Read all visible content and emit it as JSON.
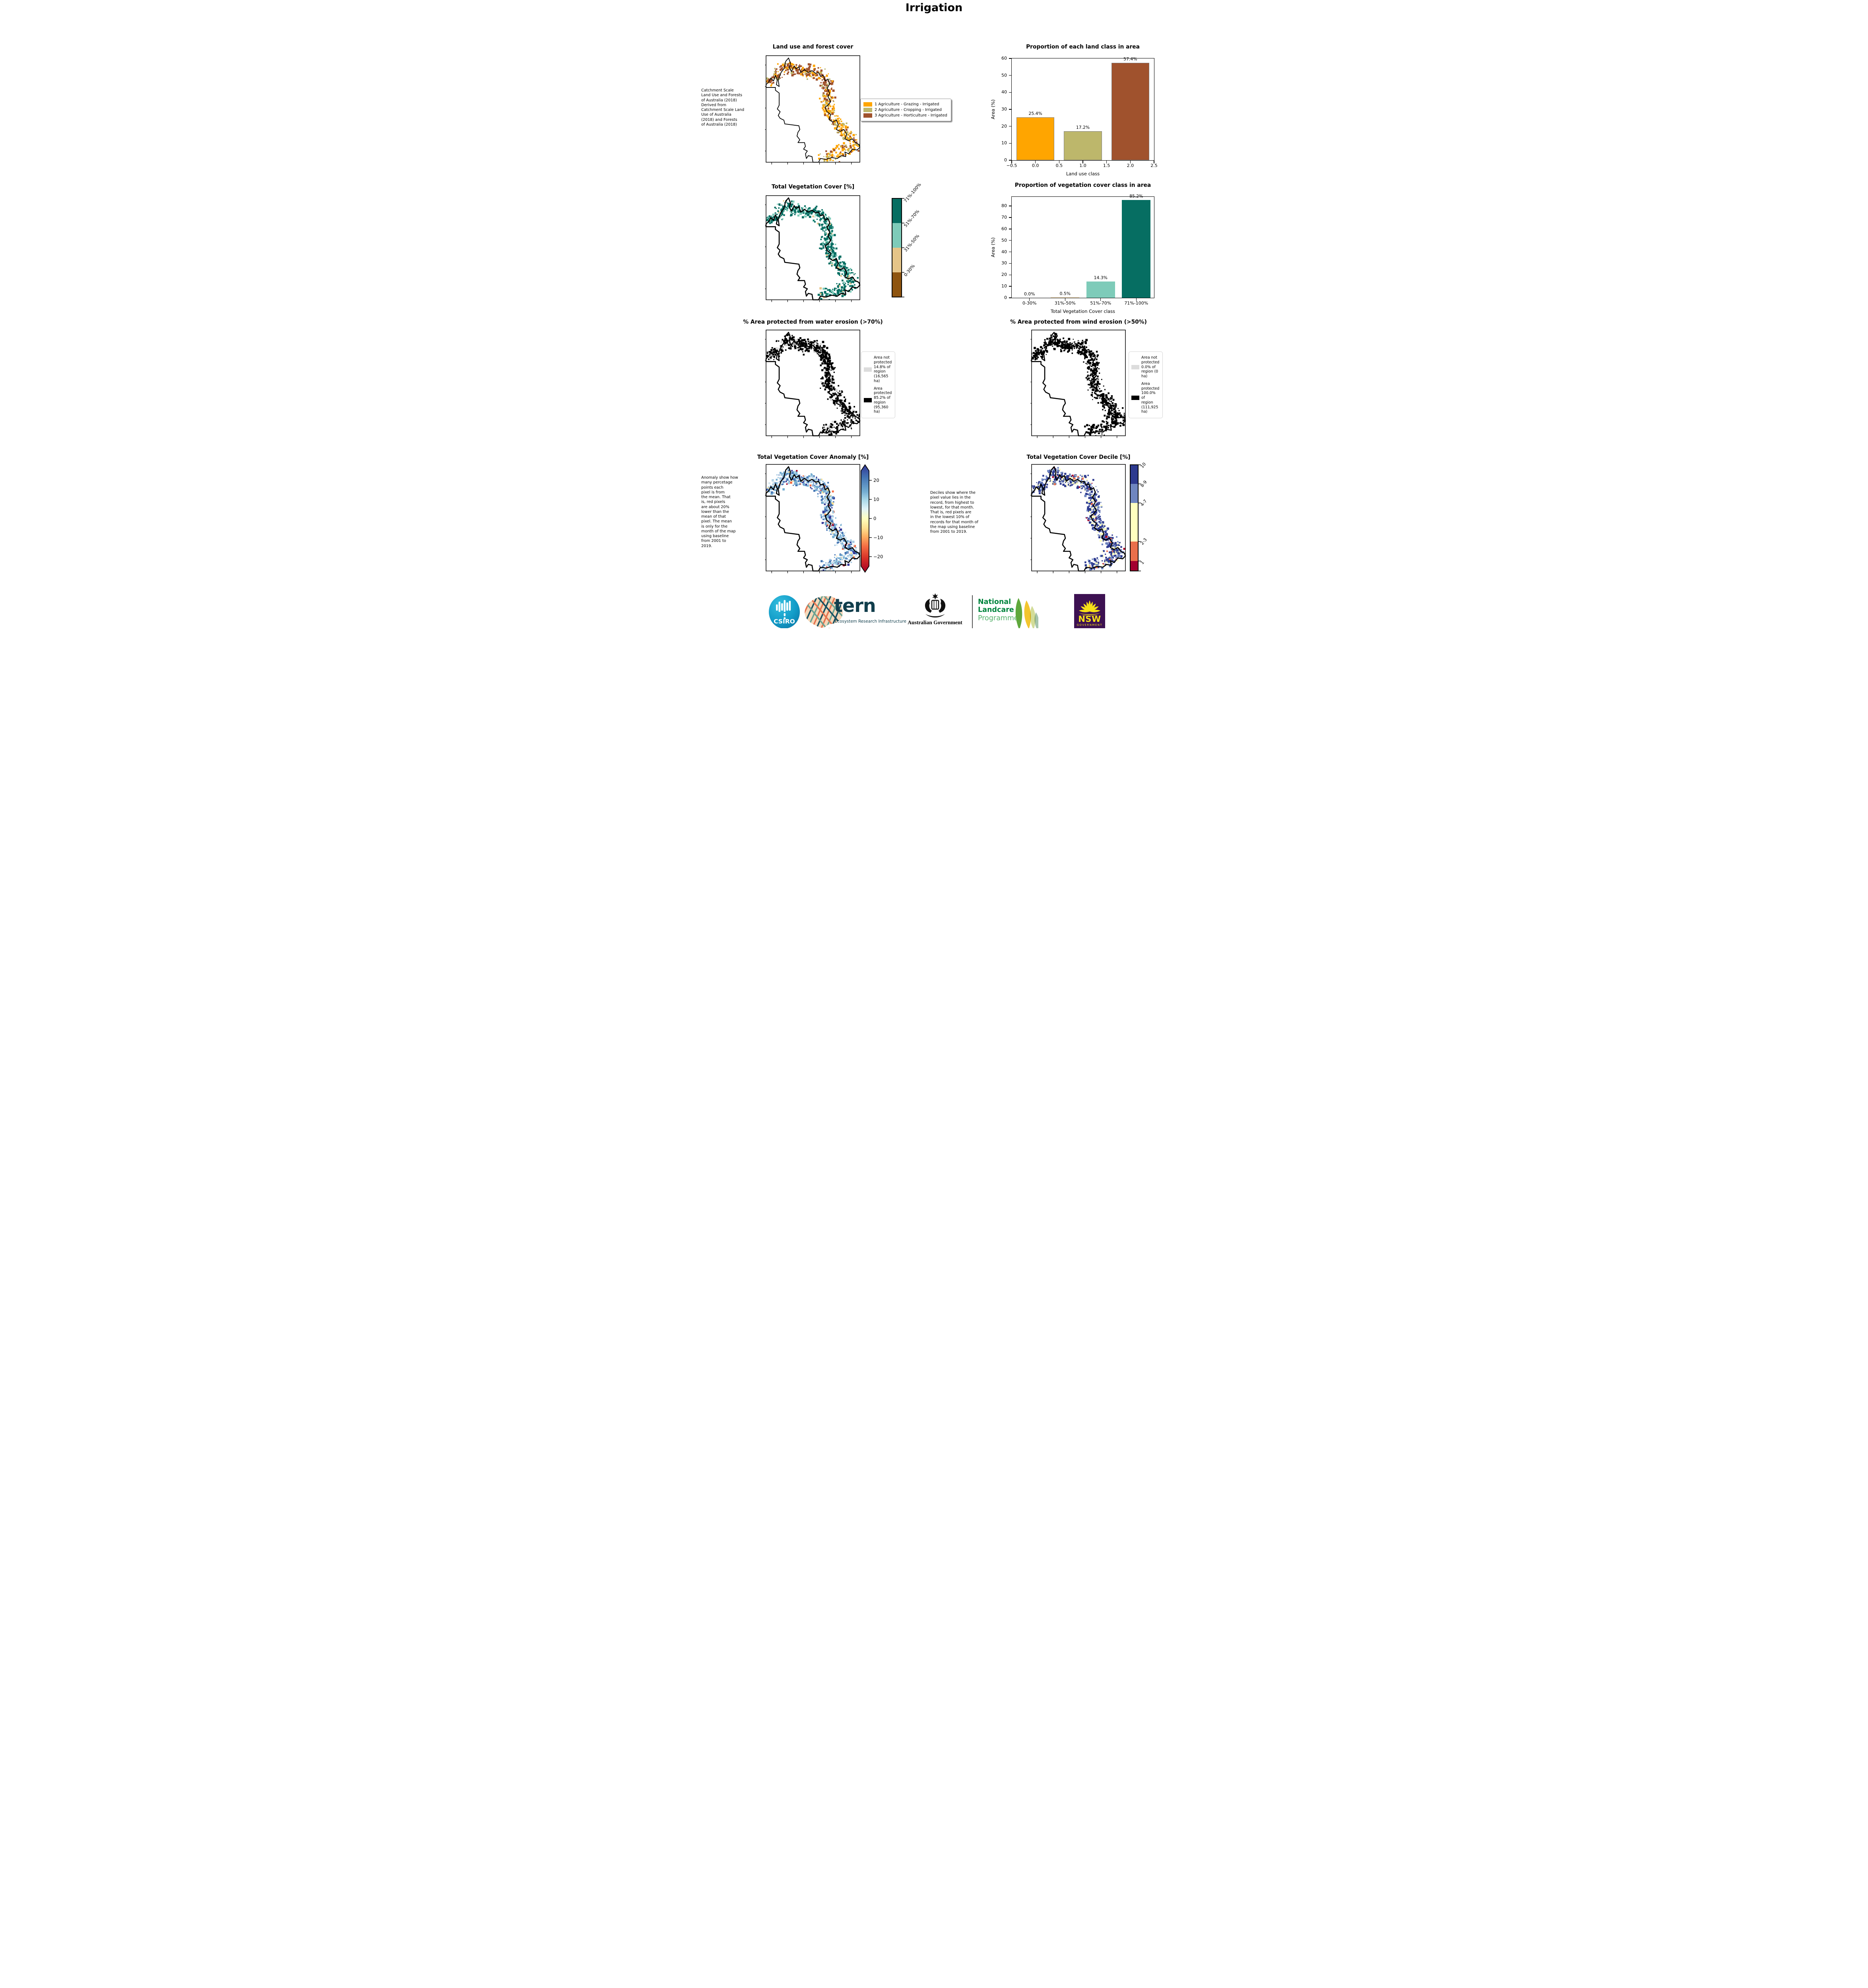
{
  "title": "Irrigation",
  "notes": {
    "landuse_source": " Catchment Scale\nLand Use and Forests\nof Australia (2018)\nDerived from\nCatchment Scale Land\nUse of Australia\n(2018) and Forests\nof Australia (2018)",
    "anomaly": "Anomaly show how\nmany percetage\npoints each\npixel is from\nthe mean. That\nis, red pixels\nare about 20%\nlower than the\nmean of that\npixel. The mean\nis only for the\nmonth of the map\nusing baseline\nfrom 2001 to\n2019.",
    "decile": "Deciles show where the\npixel value lies in the\nrecord, from highest to\nlowest, for that month.\nThat is, red pixels are\nin the lowest 10% of\nrecords for that month of\nthe map using baseline\nfrom 2001 to 2019."
  },
  "panels": {
    "landuse": {
      "title": "Land use and forest cover",
      "legend": [
        {
          "label": "1 Agriculture - Grazing - Irrigated",
          "color": "#FFA500"
        },
        {
          "label": "2 Agriculture - Cropping - Irrigated",
          "color": "#BDB76B"
        },
        {
          "label": "3 Agriculture - Horticulture - Irrigated",
          "color": "#A0522D"
        }
      ]
    },
    "vegcover": {
      "title": "Total Vegetation Cover [%]",
      "colorbar": [
        {
          "label": "71%-100%",
          "color": "#066E62"
        },
        {
          "label": "51%-70%",
          "color": "#7ECBB9"
        },
        {
          "label": "31%-50%",
          "color": "#E5C488"
        },
        {
          "label": "0-30%",
          "color": "#8E5410"
        }
      ]
    },
    "water": {
      "title": "% Area protected from water erosion (>70%)",
      "legend": [
        {
          "label": "Area not\nprotected\n14.8% of\nregion\n(16,565\nha)",
          "color": "#DCDCDC"
        },
        {
          "label": "Area\nprotected\n85.2% of\nregion\n(95,360\nha)",
          "color": "#000000"
        }
      ]
    },
    "wind": {
      "title": "% Area protected from wind erosion (>50%)",
      "legend": [
        {
          "label": "Area not\nprotected\n0.0% of\nregion (0\nha)",
          "color": "#DCDCDC"
        },
        {
          "label": "Area\nprotected\n100.0% of\nregion\n(111,925\nha)",
          "color": "#000000"
        }
      ]
    },
    "anomaly": {
      "title": "Total Vegetation Cover Anomaly [%]",
      "colorbar_ticks": [
        "20",
        "10",
        "0",
        "−10",
        "−20"
      ]
    },
    "decile": {
      "title": "Total Vegetation Cover Decile [%]",
      "colorbar": [
        {
          "label": "10",
          "color": "#2D3A8F"
        },
        {
          "label": "8-9",
          "color": "#6F86C0"
        },
        {
          "label": "4-7",
          "color": "#FFFFBF"
        },
        {
          "label": "2-3",
          "color": "#E96F4B"
        },
        {
          "label": "1",
          "color": "#A30030"
        }
      ]
    }
  },
  "chart_data": [
    {
      "type": "bar",
      "title": "Proportion of each land class in area",
      "xlabel": "Land use class",
      "ylabel": "Area (%)",
      "x": [
        0,
        1,
        2
      ],
      "values": [
        25.4,
        17.2,
        57.4
      ],
      "bar_labels": [
        "25.4%",
        "17.2%",
        "57.4%"
      ],
      "bar_colors": [
        "#FFA500",
        "#BDB76B",
        "#A0522D"
      ],
      "bar_edge": "#808080",
      "bar_width": 0.8,
      "xlim": [
        -0.5,
        2.5
      ],
      "ylim": [
        0,
        60
      ],
      "xticks": [
        {
          "v": -0.5,
          "label": "−0.5"
        },
        {
          "v": 0,
          "label": "0.0"
        },
        {
          "v": 0.5,
          "label": "0.5"
        },
        {
          "v": 1,
          "label": "1.0"
        },
        {
          "v": 1.5,
          "label": "1.5"
        },
        {
          "v": 2,
          "label": "2.0"
        },
        {
          "v": 2.5,
          "label": "2.5"
        }
      ],
      "yticks": [
        0,
        10,
        20,
        30,
        40,
        50,
        60
      ],
      "grid": false,
      "legend_position": "none"
    },
    {
      "type": "bar",
      "title": "Proportion of vegetation cover class in area",
      "xlabel": "Total Vegetation Cover class",
      "ylabel": "Area (%)",
      "categories": [
        "0-30%",
        "31%-50%",
        "51%-70%",
        "71%-100%"
      ],
      "x": [
        0,
        1,
        2,
        3
      ],
      "values": [
        0.0,
        0.5,
        14.3,
        85.2
      ],
      "bar_labels": [
        "0.0%",
        "0.5%",
        "14.3%",
        "85.2%"
      ],
      "bar_colors": [
        "#8E5410",
        "#E5C488",
        "#7ECBB9",
        "#066E62"
      ],
      "bar_width": 0.8,
      "xlim": [
        -0.5,
        3.5
      ],
      "ylim": [
        0,
        88
      ],
      "xticks": [
        {
          "v": 0,
          "label": "0-30%"
        },
        {
          "v": 1,
          "label": "31%-50%"
        },
        {
          "v": 2,
          "label": "51%-70%"
        },
        {
          "v": 3,
          "label": "71%-100%"
        }
      ],
      "yticks": [
        0,
        10,
        20,
        30,
        40,
        50,
        60,
        70,
        80
      ],
      "grid": false,
      "legend_position": "none"
    }
  ],
  "maps": {
    "landuse": {
      "seed": 11,
      "n": 26,
      "lw": 1.8,
      "palette": [
        [
          "#A0522D",
          0.6
        ],
        [
          "#FFA500",
          0.25
        ],
        [
          "#BDB76B",
          0.15
        ]
      ],
      "palette2": [
        [
          "#FFA500",
          0.55
        ],
        [
          "#BDB76B",
          0.25
        ],
        [
          "#A0522D",
          0.2
        ]
      ]
    },
    "vegcover": {
      "seed": 22,
      "n": 30,
      "lw": 2.6,
      "palette": [
        [
          "#066E62",
          0.72
        ],
        [
          "#7ECBB9",
          0.24
        ],
        [
          "#E5C488",
          0.04
        ]
      ]
    },
    "water": {
      "seed": 33,
      "n": 30,
      "lw": 2.6,
      "palette": [
        [
          "#000000",
          0.86
        ],
        [
          "#D8D8D8",
          0.14
        ]
      ]
    },
    "wind": {
      "seed": 44,
      "n": 30,
      "lw": 2.6,
      "palette": [
        [
          "#000000",
          0.97
        ],
        [
          "#D8D8D8",
          0.03
        ]
      ]
    },
    "anomaly": {
      "seed": 55,
      "n": 34,
      "lw": 2.6,
      "palette": [
        [
          "#74ADD1",
          0.3
        ],
        [
          "#A6C9E2",
          0.22
        ],
        [
          "#4575B4",
          0.18
        ],
        [
          "#D6E8F0",
          0.12
        ],
        [
          "#313695",
          0.08
        ],
        [
          "#FEE090",
          0.05
        ],
        [
          "#F46D43",
          0.03
        ],
        [
          "#A50026",
          0.02
        ]
      ]
    },
    "decile": {
      "seed": 66,
      "n": 34,
      "lw": 2.6,
      "palette": [
        [
          "#2D3A8F",
          0.55
        ],
        [
          "#6F86C0",
          0.25
        ],
        [
          "#FFFFBF",
          0.14
        ],
        [
          "#E96F4B",
          0.04
        ],
        [
          "#A50026",
          0.02
        ]
      ]
    }
  },
  "footer": {
    "csiro_label": "CSIRO",
    "tern_label": "tern",
    "tern_sub": "Ecosystem Research Infrastructure",
    "ausgov_label": "Australian Government",
    "nlp_line1": "National",
    "nlp_line2": "Landcare",
    "nlp_line3": "Programme",
    "nsw_label": "NSW",
    "nsw_sub": "GOVERNMENT"
  }
}
